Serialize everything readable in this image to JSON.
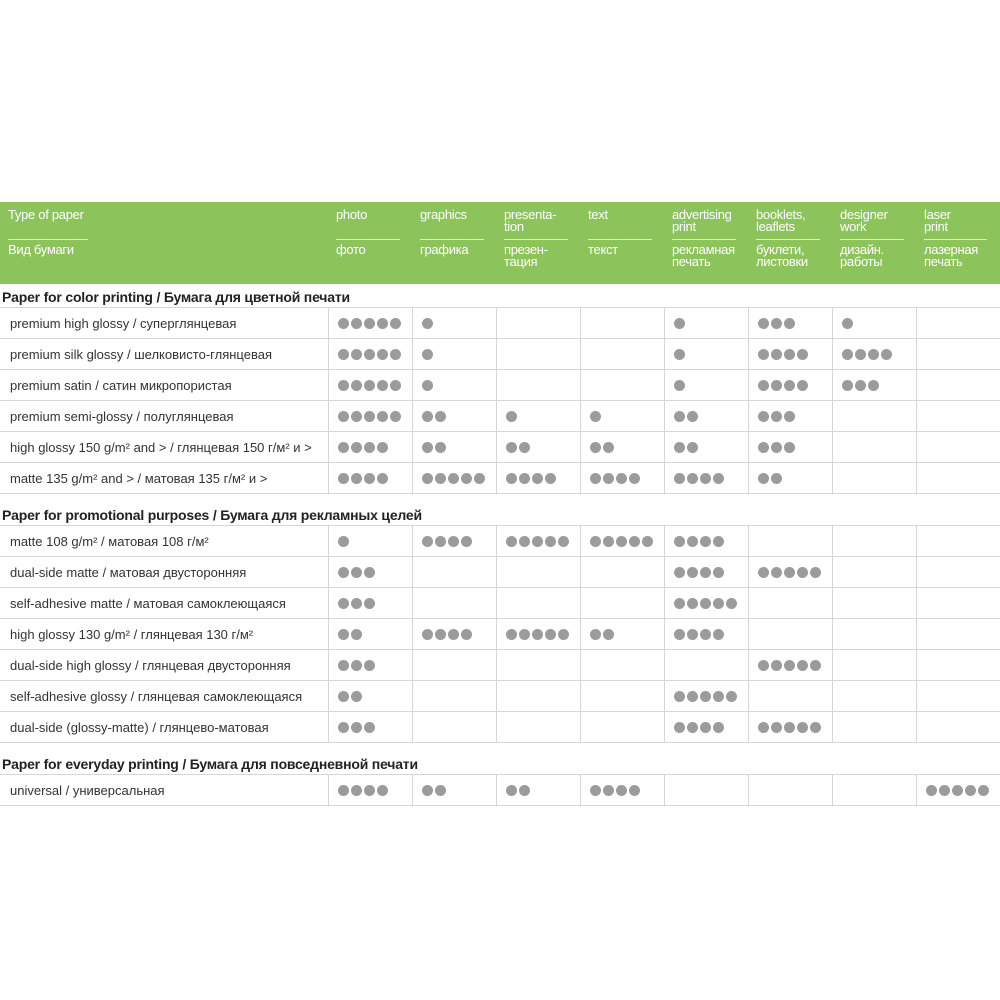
{
  "header": {
    "label_en": "Type of paper",
    "label_ru": "Вид бумаги",
    "columns": [
      {
        "en": "photo",
        "ru": "фото"
      },
      {
        "en": "graphics",
        "ru": "графика"
      },
      {
        "en": "presenta-\ntion",
        "ru": "презен-\nтация"
      },
      {
        "en": "text",
        "ru": "текст"
      },
      {
        "en": "advertising\nprint",
        "ru": "рекламная\nпечать"
      },
      {
        "en": "booklets,\nleaflets",
        "ru": "буклети,\nлистовки"
      },
      {
        "en": "designer\nwork",
        "ru": "дизайн.\nработы"
      },
      {
        "en": "laser\nprint",
        "ru": "лазерная\nпечать"
      }
    ]
  },
  "colors": {
    "header_bg": "#8cc35a",
    "dot": "#9b9b9b",
    "grid": "#d6d6d6"
  },
  "sections": [
    {
      "title": "Paper for color printing / Бумага для цветной печати",
      "rows": [
        {
          "label": "premium high glossy / суперглянцевая",
          "ratings": [
            5,
            1,
            0,
            0,
            1,
            3,
            1,
            0
          ]
        },
        {
          "label": "premium silk glossy / шелковисто-глянцевая",
          "ratings": [
            5,
            1,
            0,
            0,
            1,
            4,
            4,
            0
          ]
        },
        {
          "label": "premium satin / сатин микропористая",
          "ratings": [
            5,
            1,
            0,
            0,
            1,
            4,
            3,
            0
          ]
        },
        {
          "label": "premium semi-glossy / полуглянцевая",
          "ratings": [
            5,
            2,
            1,
            1,
            2,
            3,
            0,
            0
          ]
        },
        {
          "label": "high glossy 150 g/m² and > / глянцевая 150 г/м² и >",
          "ratings": [
            4,
            2,
            2,
            2,
            2,
            3,
            0,
            0
          ]
        },
        {
          "label": "matte 135 g/m² and > / матовая 135 г/м² и >",
          "ratings": [
            4,
            5,
            4,
            4,
            4,
            2,
            0,
            0
          ]
        }
      ]
    },
    {
      "title": "Paper for promotional purposes / Бумага для рекламных целей",
      "rows": [
        {
          "label": "matte 108 g/m² / матовая 108 г/м²",
          "ratings": [
            1,
            4,
            5,
            5,
            4,
            0,
            0,
            0
          ]
        },
        {
          "label": "dual-side matte / матовая двусторонняя",
          "ratings": [
            3,
            0,
            0,
            0,
            4,
            5,
            0,
            0
          ]
        },
        {
          "label": "self-adhesive matte / матовая самоклеющаяся",
          "ratings": [
            3,
            0,
            0,
            0,
            5,
            0,
            0,
            0
          ]
        },
        {
          "label": "high glossy 130 g/m² / глянцевая 130 г/м²",
          "ratings": [
            2,
            4,
            5,
            2,
            4,
            0,
            0,
            0
          ]
        },
        {
          "label": "dual-side high glossy / глянцевая двусторонняя",
          "ratings": [
            3,
            0,
            0,
            0,
            0,
            5,
            0,
            0
          ]
        },
        {
          "label": "self-adhesive glossy / глянцевая самоклеющаяся",
          "ratings": [
            2,
            0,
            0,
            0,
            5,
            0,
            0,
            0
          ]
        },
        {
          "label": "dual-side (glossy-matte) / глянцево-матовая",
          "ratings": [
            3,
            0,
            0,
            0,
            4,
            5,
            0,
            0
          ]
        }
      ]
    },
    {
      "title": "Paper for everyday printing / Бумага для повседневной печати",
      "rows": [
        {
          "label": "universal / универсальная",
          "ratings": [
            4,
            2,
            2,
            4,
            0,
            0,
            0,
            5
          ]
        }
      ]
    }
  ]
}
